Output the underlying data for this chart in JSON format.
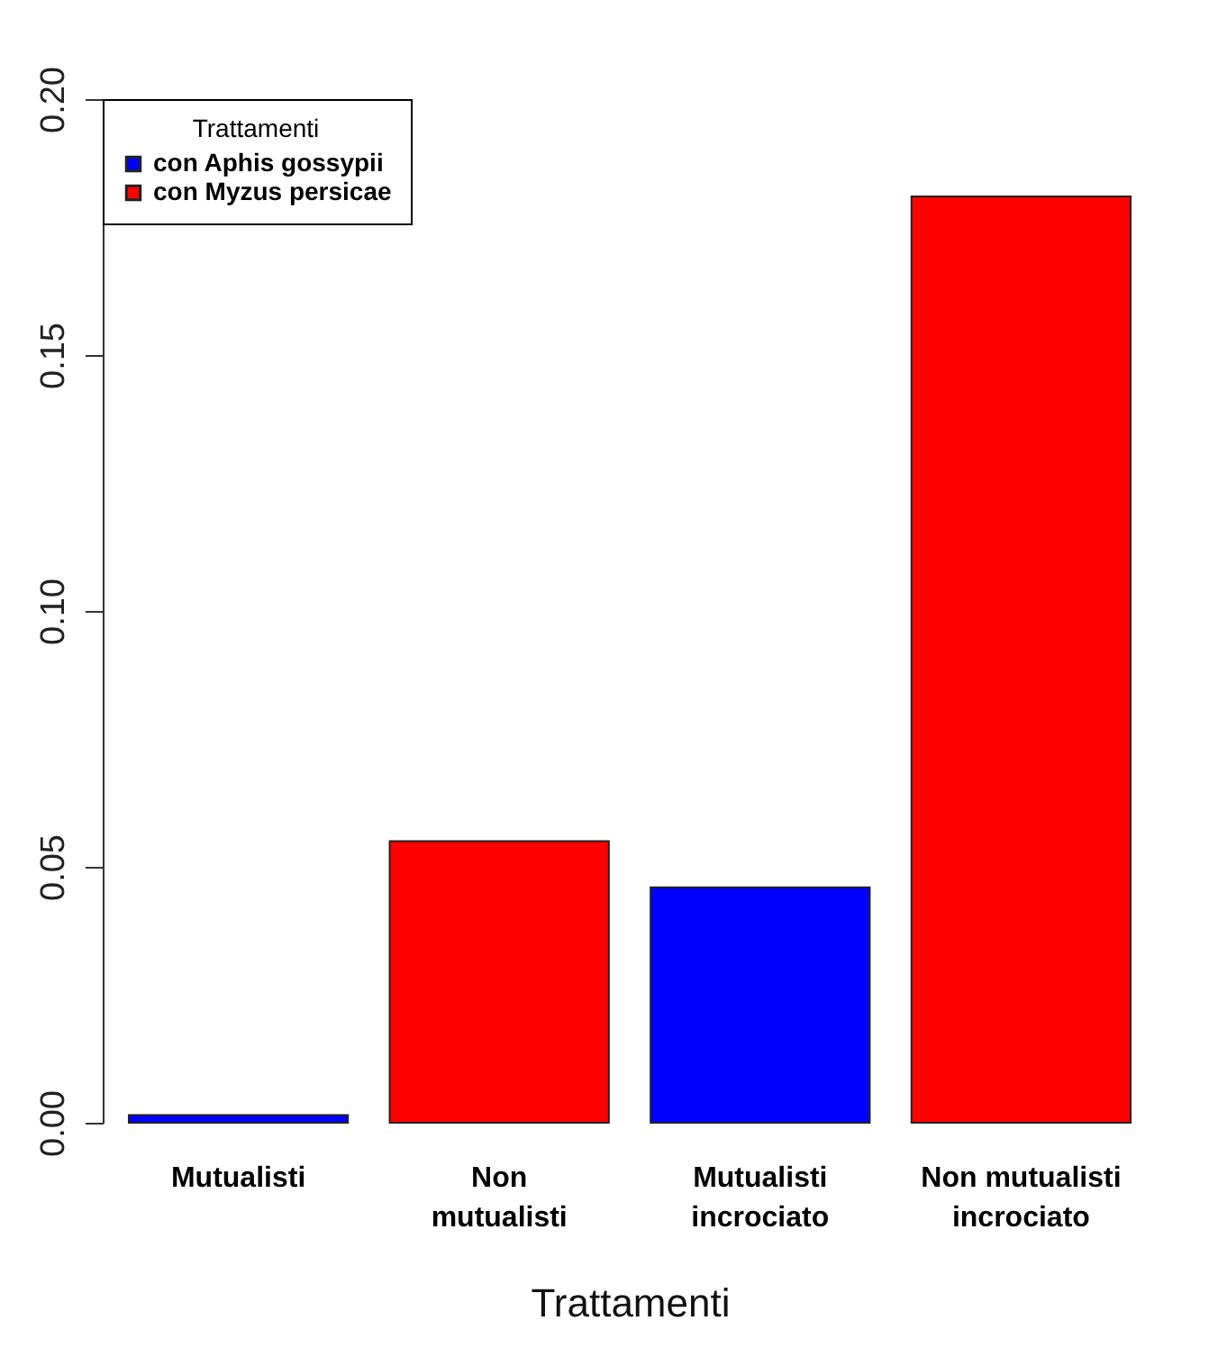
{
  "chart_data": {
    "type": "bar",
    "xlabel": "Trattamenti",
    "legend_title": "Trattamenti",
    "categories": [
      "Mutualisti",
      "Non mutualisti",
      "Mutualisti incrociato",
      "Non mutualisti incrociato"
    ],
    "series": [
      {
        "name": "con Aphis gossypii",
        "color": "#0000ff",
        "values": [
          0.0015,
          null,
          0.046,
          null
        ]
      },
      {
        "name": "con Myzus persicae",
        "color": "#ff0000",
        "values": [
          null,
          0.055,
          null,
          0.181
        ]
      }
    ],
    "ylim": [
      0,
      0.2
    ],
    "yticks": [
      {
        "value": 0,
        "label": "0.00"
      },
      {
        "value": 0.05,
        "label": "0.05"
      },
      {
        "value": 0.1,
        "label": "0.10"
      },
      {
        "value": 0.15,
        "label": "0.15"
      },
      {
        "value": 0.2,
        "label": "0.20"
      }
    ],
    "grid": false,
    "legend": "top left"
  }
}
